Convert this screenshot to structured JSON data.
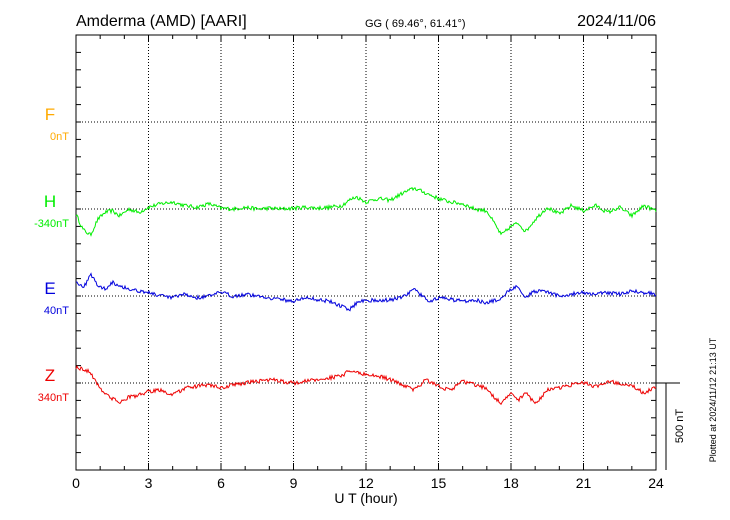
{
  "header": {
    "station": "Amderma (AMD)  [AARI]",
    "coords": "GG ( 69.46°,  61.41°)",
    "date": "2024/11/06"
  },
  "plotted_note": "Plotted at 2024/11/12 21:13 UT",
  "chart_data": {
    "type": "line",
    "xlabel": "U T (hour)",
    "xlim": [
      0,
      24
    ],
    "x_ticks": [
      "0",
      "3",
      "6",
      "9",
      "12",
      "15",
      "18",
      "21",
      "24"
    ],
    "y_units": "nT",
    "scale_bar": {
      "label": "500 nT",
      "value": 500
    },
    "components": [
      {
        "name": "F",
        "baseline_label": "0nT",
        "color": "#ffaa00",
        "has_data": false
      },
      {
        "name": "H",
        "baseline_label": "-340nT",
        "color": "#00ee00",
        "has_data": true
      },
      {
        "name": "E",
        "baseline_label": "40nT",
        "color": "#0000dd",
        "has_data": true
      },
      {
        "name": "Z",
        "baseline_label": "340nT",
        "color": "#ee0000",
        "has_data": true
      }
    ],
    "series": [
      {
        "name": "H",
        "unit_offset_from_baseline_nT": true,
        "x": [
          0,
          0.3,
          0.6,
          0.9,
          1.2,
          1.5,
          1.8,
          2.2,
          2.6,
          3.0,
          3.5,
          4.0,
          4.5,
          5.0,
          5.5,
          6.0,
          6.5,
          7.0,
          7.5,
          8.0,
          8.5,
          9.0,
          9.5,
          10.0,
          10.5,
          11.0,
          11.3,
          11.6,
          12.0,
          12.5,
          13.0,
          13.5,
          14.0,
          14.5,
          15.0,
          15.5,
          16.0,
          16.5,
          17.0,
          17.3,
          17.6,
          18.0,
          18.3,
          18.6,
          19.0,
          19.5,
          20.0,
          20.5,
          21.0,
          21.5,
          22.0,
          22.5,
          23.0,
          23.5,
          24.0
        ],
        "values": [
          -30,
          -120,
          -150,
          -60,
          -20,
          -10,
          -40,
          0,
          -20,
          10,
          30,
          40,
          20,
          10,
          30,
          5,
          0,
          10,
          0,
          5,
          0,
          5,
          10,
          5,
          10,
          20,
          50,
          70,
          40,
          60,
          50,
          90,
          120,
          90,
          60,
          40,
          30,
          0,
          -10,
          -80,
          -150,
          -100,
          -80,
          -130,
          -60,
          10,
          -30,
          20,
          -10,
          20,
          -20,
          10,
          -40,
          20,
          -10
        ]
      },
      {
        "name": "E",
        "x": [
          0,
          0.3,
          0.6,
          0.9,
          1.2,
          1.5,
          1.8,
          2.2,
          2.6,
          3.0,
          3.5,
          4.0,
          4.5,
          5.0,
          5.5,
          6.0,
          6.5,
          7.0,
          7.5,
          8.0,
          8.5,
          9.0,
          9.5,
          10.0,
          10.5,
          11.0,
          11.3,
          11.6,
          12.0,
          12.5,
          13.0,
          13.5,
          14.0,
          14.3,
          14.6,
          15.0,
          15.5,
          16.0,
          16.5,
          17.0,
          17.5,
          18.0,
          18.3,
          18.6,
          19.0,
          19.5,
          20.0,
          20.5,
          21.0,
          21.5,
          22.0,
          22.5,
          23.0,
          23.5,
          24.0
        ],
        "values": [
          90,
          40,
          130,
          60,
          40,
          80,
          60,
          40,
          30,
          20,
          0,
          -10,
          10,
          -10,
          0,
          20,
          0,
          10,
          0,
          -10,
          -20,
          -30,
          -10,
          -20,
          -30,
          -60,
          -80,
          -40,
          -20,
          -30,
          -20,
          -10,
          40,
          0,
          -30,
          -10,
          -20,
          -30,
          -20,
          -40,
          -20,
          40,
          60,
          -10,
          30,
          20,
          0,
          10,
          20,
          10,
          20,
          10,
          30,
          20,
          10
        ]
      },
      {
        "name": "Z",
        "x": [
          0,
          0.3,
          0.6,
          0.9,
          1.2,
          1.5,
          1.8,
          2.2,
          2.6,
          3.0,
          3.5,
          4.0,
          4.5,
          5.0,
          5.5,
          6.0,
          6.5,
          7.0,
          7.5,
          8.0,
          8.5,
          9.0,
          9.5,
          10.0,
          10.5,
          11.0,
          11.3,
          11.6,
          12.0,
          12.5,
          13.0,
          13.5,
          14.0,
          14.5,
          15.0,
          15.5,
          16.0,
          16.5,
          17.0,
          17.3,
          17.6,
          18.0,
          18.3,
          18.6,
          19.0,
          19.5,
          20.0,
          20.5,
          21.0,
          21.5,
          22.0,
          22.5,
          23.0,
          23.5,
          24.0
        ],
        "values": [
          90,
          80,
          60,
          -10,
          -60,
          -90,
          -110,
          -80,
          -70,
          -50,
          -40,
          -70,
          -30,
          -20,
          -10,
          -30,
          -10,
          0,
          10,
          20,
          10,
          0,
          10,
          20,
          30,
          40,
          70,
          60,
          50,
          40,
          20,
          -10,
          -40,
          20,
          -20,
          -40,
          10,
          -10,
          -30,
          -80,
          -120,
          -60,
          -100,
          -50,
          -120,
          -40,
          -30,
          -10,
          0,
          -20,
          10,
          0,
          -10,
          -60,
          -20
        ]
      }
    ]
  }
}
